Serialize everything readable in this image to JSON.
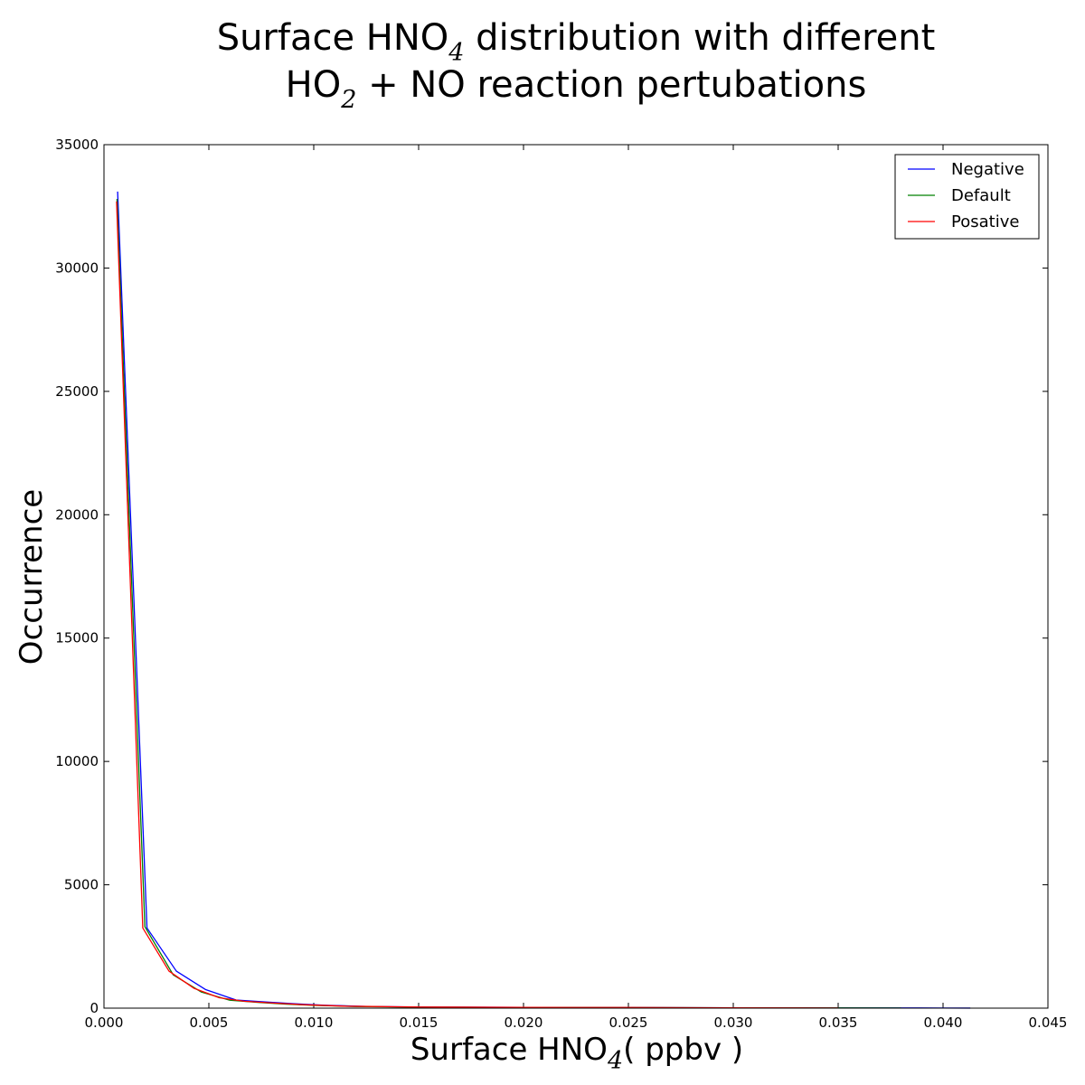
{
  "chart_data": {
    "type": "line",
    "title": {
      "line1": {
        "before": "Surface HNO",
        "sub": "4",
        "after": " distribution with different"
      },
      "line2": {
        "before": "HO",
        "sub": "2",
        "after": " + NO reaction pertubations"
      }
    },
    "xlabel": {
      "before": "Surface HNO",
      "sub": "4",
      "after": "( ppbv )"
    },
    "ylabel": "Occurrence",
    "xlim": [
      0.0,
      0.045
    ],
    "ylim": [
      0,
      35000
    ],
    "xticks": [
      "0.000",
      "0.005",
      "0.010",
      "0.015",
      "0.020",
      "0.025",
      "0.030",
      "0.035",
      "0.040",
      "0.045"
    ],
    "yticks": [
      "0",
      "5000",
      "10000",
      "15000",
      "20000",
      "25000",
      "30000",
      "35000"
    ],
    "xtick_values": [
      0.0,
      0.005,
      0.01,
      0.015,
      0.02,
      0.025,
      0.03,
      0.035,
      0.04,
      0.045
    ],
    "ytick_values": [
      0,
      5000,
      10000,
      15000,
      20000,
      25000,
      30000,
      35000
    ],
    "legend_position": "top-right",
    "grid": false,
    "series": [
      {
        "name": "Negative",
        "color": "#0000ff",
        "points": [
          [
            0.00065,
            33100
          ],
          [
            0.00205,
            3250
          ],
          [
            0.00345,
            1500
          ],
          [
            0.00485,
            750
          ],
          [
            0.0063,
            330
          ],
          [
            0.0077,
            250
          ],
          [
            0.0091,
            180
          ],
          [
            0.0105,
            120
          ],
          [
            0.0125,
            70
          ],
          [
            0.015,
            45
          ],
          [
            0.02,
            30
          ],
          [
            0.025,
            25
          ],
          [
            0.03,
            15
          ],
          [
            0.035,
            10
          ],
          [
            0.04,
            5
          ],
          [
            0.0413,
            3
          ]
        ]
      },
      {
        "name": "Default",
        "color": "#008000",
        "points": [
          [
            0.00062,
            32800
          ],
          [
            0.00195,
            3300
          ],
          [
            0.0033,
            1350
          ],
          [
            0.00465,
            650
          ],
          [
            0.006,
            320
          ],
          [
            0.0074,
            230
          ],
          [
            0.0087,
            160
          ],
          [
            0.0101,
            110
          ],
          [
            0.012,
            65
          ],
          [
            0.015,
            42
          ],
          [
            0.02,
            28
          ],
          [
            0.025,
            22
          ],
          [
            0.03,
            13
          ],
          [
            0.035,
            8
          ],
          [
            0.038,
            4
          ]
        ]
      },
      {
        "name": "Posative",
        "color": "#ff0000",
        "points": [
          [
            0.0006,
            32700
          ],
          [
            0.00185,
            3250
          ],
          [
            0.0031,
            1500
          ],
          [
            0.0043,
            800
          ],
          [
            0.0055,
            420
          ],
          [
            0.0067,
            280
          ],
          [
            0.008,
            210
          ],
          [
            0.0095,
            140
          ],
          [
            0.0115,
            80
          ],
          [
            0.015,
            45
          ],
          [
            0.02,
            30
          ],
          [
            0.025,
            25
          ],
          [
            0.03,
            15
          ],
          [
            0.035,
            5
          ]
        ]
      }
    ]
  }
}
